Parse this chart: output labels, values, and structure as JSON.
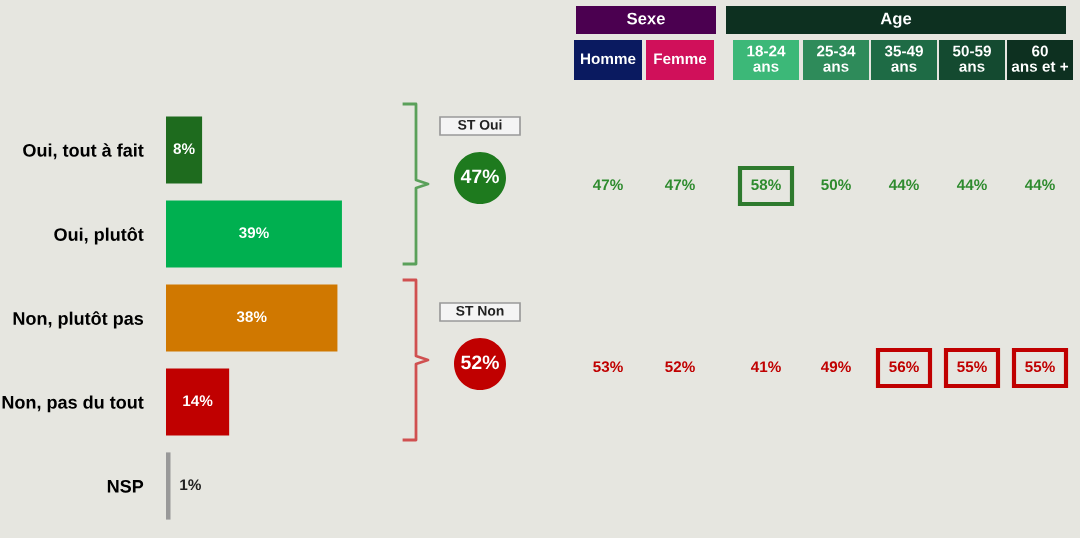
{
  "chart_data": {
    "type": "bar",
    "orientation": "horizontal",
    "categories": [
      "Oui, tout à fait",
      "Oui, plutôt",
      "Non, plutôt pas",
      "Non, pas du tout",
      "NSP"
    ],
    "values": [
      8,
      39,
      38,
      14,
      1
    ],
    "colors": [
      "#1e6b1e",
      "#00b050",
      "#d07800",
      "#c00000",
      "#999999"
    ],
    "value_labels": [
      "8%",
      "39%",
      "38%",
      "14%",
      "1%"
    ],
    "grid": false,
    "legend": false,
    "annotations": [
      "ST Oui",
      "47%",
      "ST Non",
      "52%",
      "Sexe",
      "Age",
      "Homme",
      "Femme",
      "18-24 ans",
      "25-34 ans",
      "35-49 ans",
      "50-59 ans",
      "60 ans et +",
      "47%",
      "47%",
      "58%",
      "50%",
      "44%",
      "44%",
      "44%",
      "53%",
      "52%",
      "41%",
      "49%",
      "56%",
      "55%",
      "55%"
    ]
  }
}
